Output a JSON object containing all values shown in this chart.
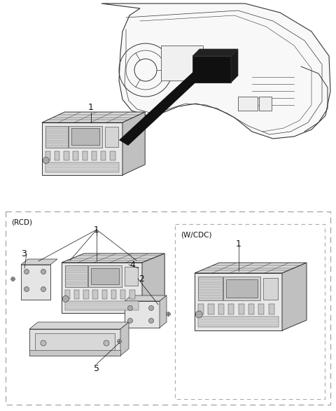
{
  "background_color": "#ffffff",
  "line_color": "#333333",
  "dark_color": "#111111",
  "light_fill": "#f5f5f5",
  "mid_fill": "#e0e0e0",
  "dark_fill": "#101010",
  "top_label": "1",
  "rcd_label": "(RCD)",
  "wcdc_label": "(W/CDC)",
  "rcd_part_labels": [
    "1",
    "2",
    "3",
    "4",
    "5"
  ],
  "wcdc_part_label": "1",
  "figsize": [
    4.8,
    5.87
  ],
  "dpi": 100
}
